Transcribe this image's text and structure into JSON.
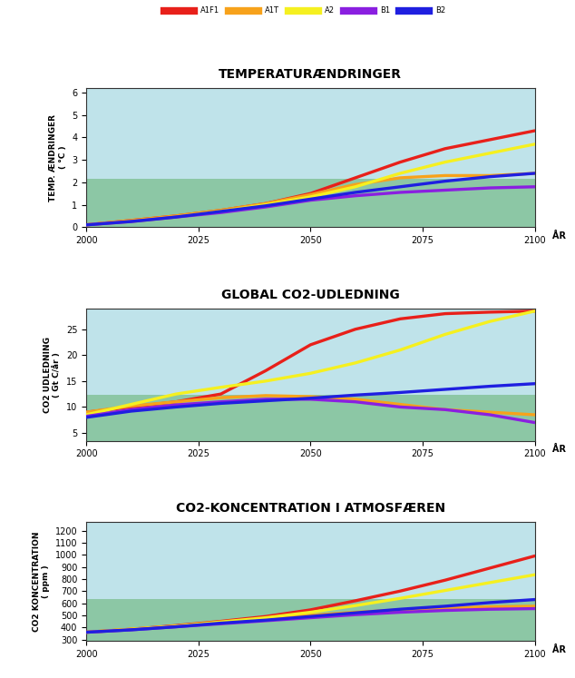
{
  "chart_data": [
    {
      "type": "line",
      "title": "TEMPERATURÆNDRINGER",
      "y_label": "TEMP. ÆNDRINGER\n( °C )",
      "x_label": "ÅR",
      "legend": "top",
      "x": [
        2000,
        2010,
        2020,
        2030,
        2040,
        2050,
        2060,
        2070,
        2080,
        2090,
        2100
      ],
      "xlim": [
        2000,
        2100
      ],
      "xticks": [
        2000,
        2025,
        2050,
        2075,
        2100
      ],
      "ylim": [
        0,
        6.2
      ],
      "yticks": [
        0,
        1,
        2,
        3,
        4,
        5,
        6
      ],
      "series": [
        {
          "name": "A1F1",
          "color": "#e8201a",
          "values": [
            0.1,
            0.3,
            0.5,
            0.75,
            1.05,
            1.5,
            2.2,
            2.9,
            3.5,
            3.9,
            4.3
          ]
        },
        {
          "name": "A1T",
          "color": "#f7a21b",
          "values": [
            0.1,
            0.3,
            0.5,
            0.75,
            1.05,
            1.45,
            1.9,
            2.2,
            2.3,
            2.3,
            2.4
          ]
        },
        {
          "name": "A2",
          "color": "#f5f020",
          "values": [
            0.1,
            0.25,
            0.45,
            0.7,
            1.0,
            1.35,
            1.8,
            2.4,
            2.9,
            3.3,
            3.7
          ]
        },
        {
          "name": "B1",
          "color": "#8a1fe0",
          "values": [
            0.1,
            0.25,
            0.45,
            0.65,
            0.9,
            1.2,
            1.4,
            1.55,
            1.65,
            1.75,
            1.8
          ]
        },
        {
          "name": "B2",
          "color": "#1f1fe0",
          "values": [
            0.1,
            0.25,
            0.45,
            0.7,
            0.95,
            1.25,
            1.55,
            1.8,
            2.05,
            2.25,
            2.4
          ]
        }
      ]
    },
    {
      "type": "line",
      "title": "GLOBAL CO2-UDLEDNING",
      "y_label": "CO2 UDLEDNING\n( Gt C/år )",
      "x_label": "ÅR",
      "x": [
        2000,
        2010,
        2020,
        2030,
        2040,
        2050,
        2060,
        2070,
        2080,
        2090,
        2100
      ],
      "xlim": [
        2000,
        2100
      ],
      "xticks": [
        2000,
        2025,
        2050,
        2075,
        2100
      ],
      "ylim": [
        3.5,
        29
      ],
      "yticks": [
        5,
        10,
        15,
        20,
        25
      ],
      "series": [
        {
          "name": "A1F1",
          "color": "#e8201a",
          "values": [
            9,
            10,
            11,
            12.5,
            17,
            22,
            25,
            27,
            28,
            28.3,
            28.5
          ]
        },
        {
          "name": "A1T",
          "color": "#f7a21b",
          "values": [
            9,
            10.2,
            11,
            11.8,
            12.2,
            12,
            11.5,
            10.5,
            9.5,
            9,
            8.5
          ]
        },
        {
          "name": "A2",
          "color": "#f5f020",
          "values": [
            8.5,
            10.5,
            12.5,
            13.8,
            15,
            16.5,
            18.5,
            21,
            24,
            26.5,
            28.5
          ]
        },
        {
          "name": "B1",
          "color": "#8a1fe0",
          "values": [
            8.2,
            9.5,
            10.4,
            11,
            11.5,
            11.5,
            11,
            10,
            9.5,
            8.5,
            7
          ]
        },
        {
          "name": "B2",
          "color": "#1f1fe0",
          "values": [
            8,
            9.2,
            10,
            10.7,
            11.2,
            11.7,
            12.3,
            12.8,
            13.4,
            14,
            14.5
          ]
        }
      ]
    },
    {
      "type": "line",
      "title": "CO2-KONCENTRATION I ATMOSFÆREN",
      "y_label": "CO2 KONCENTRATION\n( ppm )",
      "x_label": "ÅR",
      "x": [
        2000,
        2010,
        2020,
        2030,
        2040,
        2050,
        2060,
        2070,
        2080,
        2090,
        2100
      ],
      "xlim": [
        2000,
        2100
      ],
      "xticks": [
        2000,
        2025,
        2050,
        2075,
        2100
      ],
      "ylim": [
        290,
        1270
      ],
      "yticks": [
        300,
        400,
        500,
        600,
        700,
        800,
        900,
        1000,
        1100,
        1200
      ],
      "series": [
        {
          "name": "A1F1",
          "color": "#e8201a",
          "values": [
            360,
            385,
            415,
            450,
            490,
            545,
            620,
            700,
            790,
            890,
            990
          ]
        },
        {
          "name": "A1T",
          "color": "#f7a21b",
          "values": [
            360,
            385,
            410,
            440,
            470,
            500,
            525,
            545,
            560,
            570,
            575
          ]
        },
        {
          "name": "A2",
          "color": "#f5f020",
          "values": [
            360,
            385,
            410,
            445,
            480,
            525,
            580,
            640,
            705,
            770,
            835
          ]
        },
        {
          "name": "B1",
          "color": "#8a1fe0",
          "values": [
            360,
            380,
            405,
            430,
            455,
            480,
            505,
            525,
            540,
            550,
            555
          ]
        },
        {
          "name": "B2",
          "color": "#1f1fe0",
          "values": [
            360,
            380,
            405,
            435,
            460,
            490,
            520,
            550,
            575,
            605,
            630
          ]
        }
      ]
    }
  ]
}
